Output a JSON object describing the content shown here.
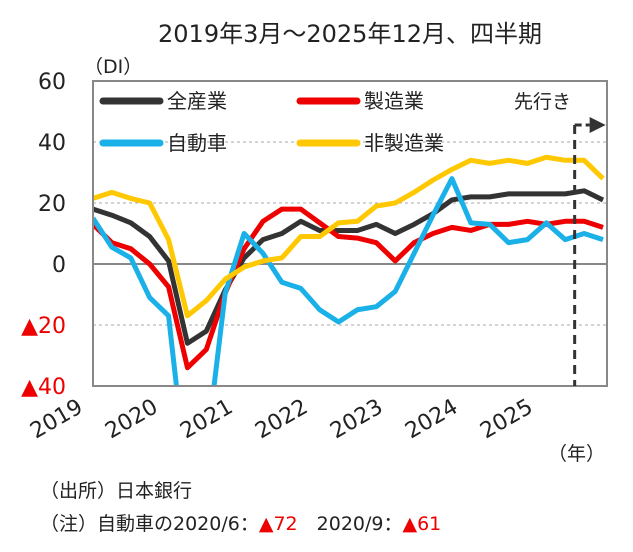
{
  "chart_data": {
    "type": "line",
    "title": "2019年3月～2025年12月、四半期",
    "ylabel": "（DI）",
    "xlabel": "（年）",
    "ylim": [
      -40,
      60
    ],
    "yticks": [
      {
        "value": 60,
        "label": "60",
        "color": "#222222"
      },
      {
        "value": 40,
        "label": "40",
        "color": "#222222"
      },
      {
        "value": 20,
        "label": "20",
        "color": "#222222"
      },
      {
        "value": 0,
        "label": "0",
        "color": "#222222"
      },
      {
        "value": -20,
        "label": "▲20",
        "color": "#ee0000"
      },
      {
        "value": -40,
        "label": "▲40",
        "color": "#ee0000"
      }
    ],
    "xtick_labels": [
      "2019",
      "2020",
      "2021",
      "2022",
      "2023",
      "2024",
      "2025"
    ],
    "grid": true,
    "legend_position": "top-left",
    "forecast_label": "先行き",
    "forecast_start_index": 25.5,
    "x": [
      "2019Q1",
      "2019Q2",
      "2019Q3",
      "2019Q4",
      "2020Q1",
      "2020Q2",
      "2020Q3",
      "2020Q4",
      "2021Q1",
      "2021Q2",
      "2021Q3",
      "2021Q4",
      "2022Q1",
      "2022Q2",
      "2022Q3",
      "2022Q4",
      "2023Q1",
      "2023Q2",
      "2023Q3",
      "2023Q4",
      "2024Q1",
      "2024Q2",
      "2024Q3",
      "2024Q4",
      "2025Q1",
      "2025Q2",
      "2025Q3",
      "2025Q4"
    ],
    "series": [
      {
        "name": "全産業",
        "color": "#333333",
        "values": [
          18,
          16,
          13.5,
          9,
          1,
          -26,
          -22,
          -8.5,
          2,
          8,
          10,
          14,
          11,
          11,
          11,
          13,
          10,
          13,
          16.5,
          21,
          22,
          22,
          23,
          23,
          23,
          23,
          24,
          21
        ]
      },
      {
        "name": "製造業",
        "color": "#ee0000",
        "values": [
          13,
          7,
          5,
          0,
          -7.5,
          -34,
          -28,
          -9.5,
          5,
          14,
          18,
          18,
          13.5,
          9,
          8.5,
          7,
          1,
          7,
          10,
          12,
          11,
          13,
          13,
          14,
          13,
          14,
          14,
          12
        ]
      },
      {
        "name": "自動車",
        "color": "#1ab0e8",
        "values": [
          15,
          5.5,
          2,
          -11,
          -17,
          -72,
          -61,
          -9.5,
          10,
          3.5,
          -6,
          -8,
          -15,
          -19,
          -15,
          -14,
          -9,
          3.5,
          16,
          28,
          13.5,
          13,
          7,
          8,
          13.5,
          8,
          10,
          8
        ]
      },
      {
        "name": "非製造業",
        "color": "#ffc800",
        "values": [
          21.5,
          23.5,
          21.5,
          20,
          8,
          -17,
          -12,
          -5,
          -1,
          1,
          2,
          9,
          9,
          13.5,
          14,
          19,
          20,
          23.5,
          27.5,
          31,
          34,
          33,
          34,
          33,
          35,
          34,
          34,
          28
        ]
      }
    ]
  },
  "notes": {
    "source": "（出所）日本銀行",
    "note_prefix": "（注）自動車の2020/6：",
    "note_value1": "▲72",
    "note_mid": "　2020/9：",
    "note_value2": "▲61"
  }
}
